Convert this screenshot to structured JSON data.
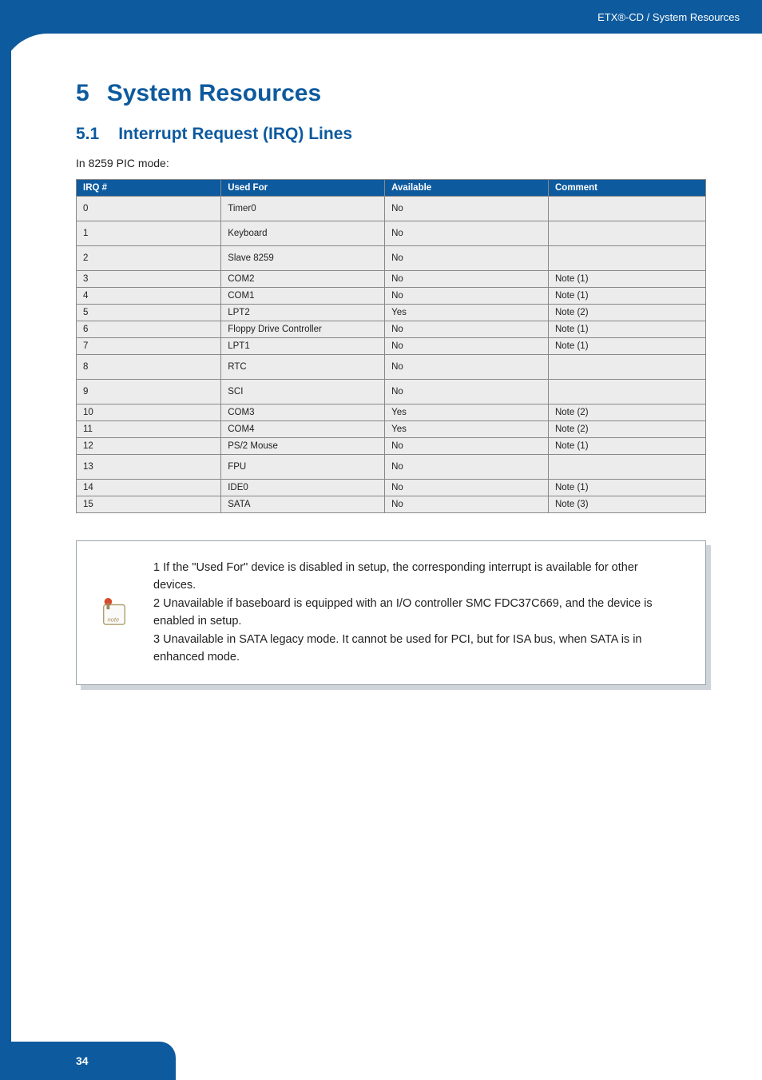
{
  "header": {
    "breadcrumb": "ETX®-CD / System Resources"
  },
  "title": {
    "number": "5",
    "text": "System Resources"
  },
  "section": {
    "number": "5.1",
    "text": "Interrupt Request (IRQ) Lines"
  },
  "intro": "In 8259 PIC mode:",
  "table": {
    "headers": [
      "IRQ #",
      "Used For",
      "Available",
      "Comment"
    ],
    "rows": [
      {
        "irq": "0",
        "used": "Timer0",
        "avail": "No",
        "comment": "",
        "tall": true
      },
      {
        "irq": "1",
        "used": "Keyboard",
        "avail": "No",
        "comment": "",
        "tall": true
      },
      {
        "irq": "2",
        "used": "Slave 8259",
        "avail": "No",
        "comment": "",
        "tall": true
      },
      {
        "irq": "3",
        "used": "COM2",
        "avail": "No",
        "comment": "Note (1)",
        "tall": false
      },
      {
        "irq": "4",
        "used": "COM1",
        "avail": "No",
        "comment": "Note (1)",
        "tall": false
      },
      {
        "irq": "5",
        "used": "LPT2",
        "avail": "Yes",
        "comment": "Note (2)",
        "tall": false
      },
      {
        "irq": "6",
        "used": "Floppy Drive Controller",
        "avail": "No",
        "comment": "Note (1)",
        "tall": false
      },
      {
        "irq": "7",
        "used": "LPT1",
        "avail": "No",
        "comment": "Note (1)",
        "tall": false
      },
      {
        "irq": "8",
        "used": "RTC",
        "avail": "No",
        "comment": "",
        "tall": true
      },
      {
        "irq": "9",
        "used": "SCI",
        "avail": "No",
        "comment": "",
        "tall": true
      },
      {
        "irq": "10",
        "used": "COM3",
        "avail": "Yes",
        "comment": "Note (2)",
        "tall": false
      },
      {
        "irq": "11",
        "used": "COM4",
        "avail": "Yes",
        "comment": "Note (2)",
        "tall": false
      },
      {
        "irq": "12",
        "used": "PS/2 Mouse",
        "avail": "No",
        "comment": "Note (1)",
        "tall": false
      },
      {
        "irq": "13",
        "used": "FPU",
        "avail": "No",
        "comment": "",
        "tall": true
      },
      {
        "irq": "14",
        "used": "IDE0",
        "avail": "No",
        "comment": "Note (1)",
        "tall": false
      },
      {
        "irq": "15",
        "used": "SATA",
        "avail": "No",
        "comment": "Note (3)",
        "tall": false
      }
    ],
    "col_widths": [
      "23%",
      "26%",
      "26%",
      "25%"
    ]
  },
  "notes": [
    "1 If the \"Used For\" device is disabled in setup, the corresponding interrupt is available for other devices.",
    " 2 Unavailable if baseboard is equipped with an I/O controller SMC FDC37C669, and the device is enabled in setup.",
    " 3 Unavailable in SATA legacy mode. It cannot be used for PCI, but for ISA bus, when SATA is in enhanced mode."
  ],
  "footer": {
    "page": "34"
  },
  "colors": {
    "brand": "#0d5a9e",
    "row_bg": "#ececec",
    "border": "#888888",
    "shadow": "#cfd4da"
  }
}
